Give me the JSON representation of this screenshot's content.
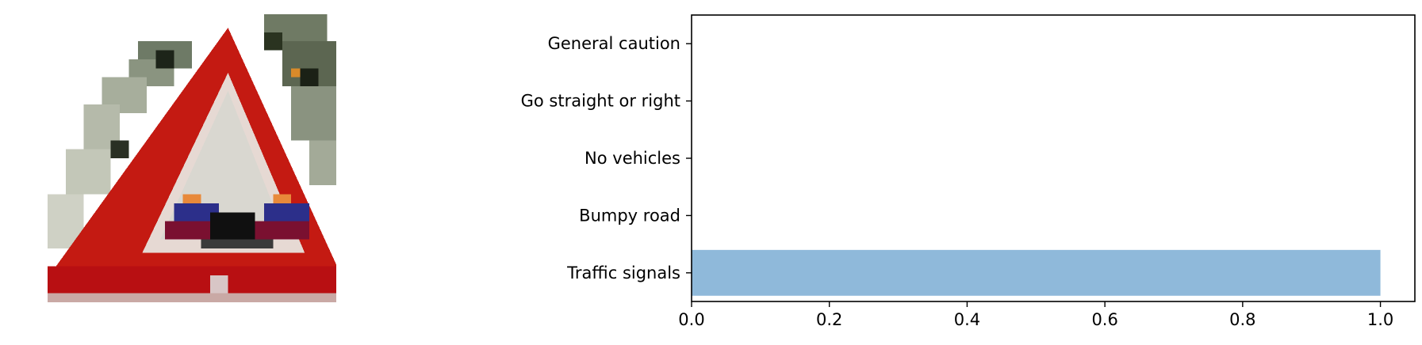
{
  "image_panel": {
    "icon": "traffic-signals-warning-sign",
    "colors": {
      "red": "#c41a12",
      "inner": "#d9d7d0",
      "blue": "#2c2f8a",
      "orange": "#e8893a",
      "foliage": "#7c8571"
    }
  },
  "chart_data": {
    "type": "bar",
    "orientation": "horizontal",
    "categories": [
      "General caution",
      "Go straight or right",
      "No vehicles",
      "Bumpy road",
      "Traffic signals"
    ],
    "values": [
      0.0,
      0.0,
      0.0,
      0.0,
      1.0
    ],
    "xlim": [
      0.0,
      1.05
    ],
    "xticks": [
      "0.0",
      "0.2",
      "0.4",
      "0.6",
      "0.8",
      "1.0"
    ],
    "title": "",
    "xlabel": "",
    "ylabel": "",
    "bar_color": "#8fb9da",
    "grid": false
  }
}
